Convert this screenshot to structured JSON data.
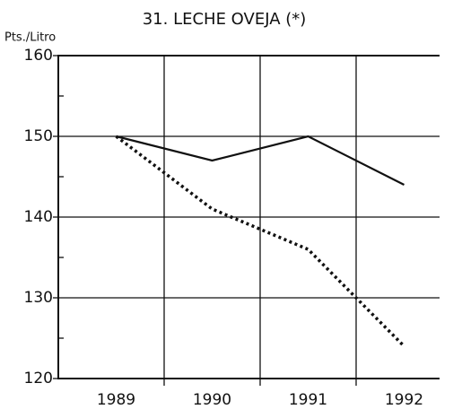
{
  "chart_data": {
    "type": "line",
    "title": "31. LECHE OVEJA (*)",
    "y_label": "Pts./Litro",
    "categories": [
      "1989",
      "1990",
      "1991",
      "1992"
    ],
    "series": [
      {
        "color": "#111111",
        "style": "solid",
        "values": [
          150,
          147,
          150,
          144
        ]
      },
      {
        "color": "#111111",
        "style": "dotted",
        "values": [
          150,
          141,
          136,
          124
        ]
      }
    ],
    "ylim": [
      120,
      160
    ],
    "yticks": [
      120,
      130,
      140,
      150,
      160
    ],
    "grid": true
  }
}
